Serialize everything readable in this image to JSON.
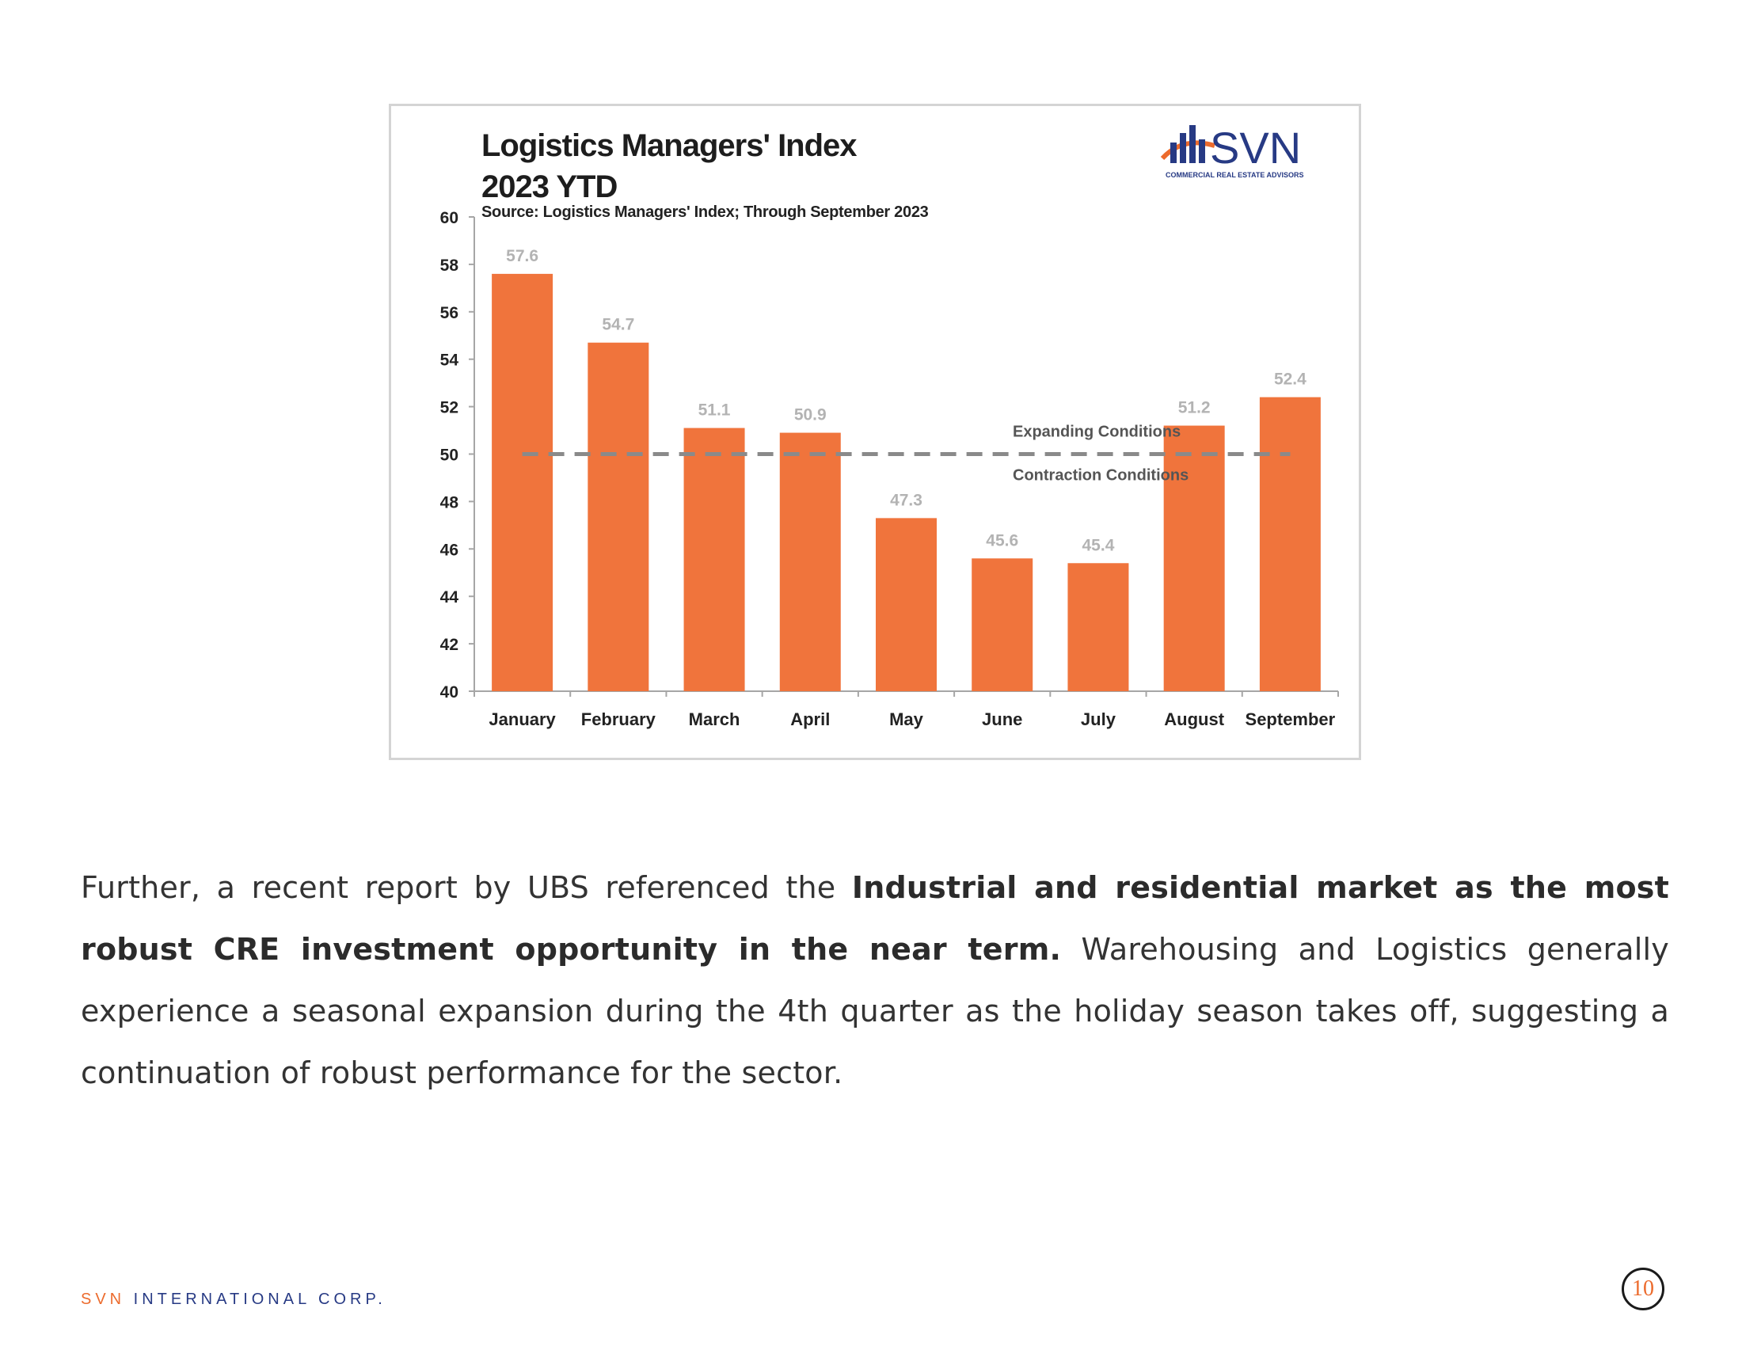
{
  "chart_data": {
    "type": "bar",
    "title_line1": "Logistics Managers' Index",
    "title_line2": "2023 YTD",
    "source": "Source: Logistics Managers' Index; Through September 2023",
    "categories": [
      "January",
      "February",
      "March",
      "April",
      "May",
      "June",
      "July",
      "August",
      "September"
    ],
    "values": [
      57.6,
      54.7,
      51.1,
      50.9,
      47.3,
      45.6,
      45.4,
      51.2,
      52.4
    ],
    "value_labels": [
      "57.6",
      "54.7",
      "51.1",
      "50.9",
      "47.3",
      "45.6",
      "45.4",
      "51.2",
      "52.4"
    ],
    "ylim": [
      40,
      60
    ],
    "yticks": [
      40,
      42,
      44,
      46,
      48,
      50,
      52,
      54,
      56,
      58,
      60
    ],
    "reference_line": {
      "value": 50,
      "label_above": "Expanding Conditions",
      "label_below": "Contraction Conditions"
    },
    "bar_color": "#f0743c",
    "reference_line_color": "#8a8a8a",
    "value_label_color": "#b3b3b3",
    "grid": false
  },
  "logo": {
    "name": "SVN",
    "tagline": "COMMERCIAL REAL ESTATE ADVISORS",
    "colors": {
      "text": "#273a84",
      "bars": "#ec6b2d"
    }
  },
  "body": {
    "p_start": "Further, a recent report by UBS referenced the ",
    "p_bold": "Industrial and residential market as the most robust CRE investment opportunity in the near term.",
    "p_end": " Warehousing and Logistics generally experience a seasonal expansion during the 4th quarter as the holiday season takes off, suggesting a continuation of robust performance for the sector."
  },
  "footer": {
    "brand_accent": "SVN",
    "brand_rest": " INTERNATIONAL CORP.",
    "page_number": "10"
  }
}
